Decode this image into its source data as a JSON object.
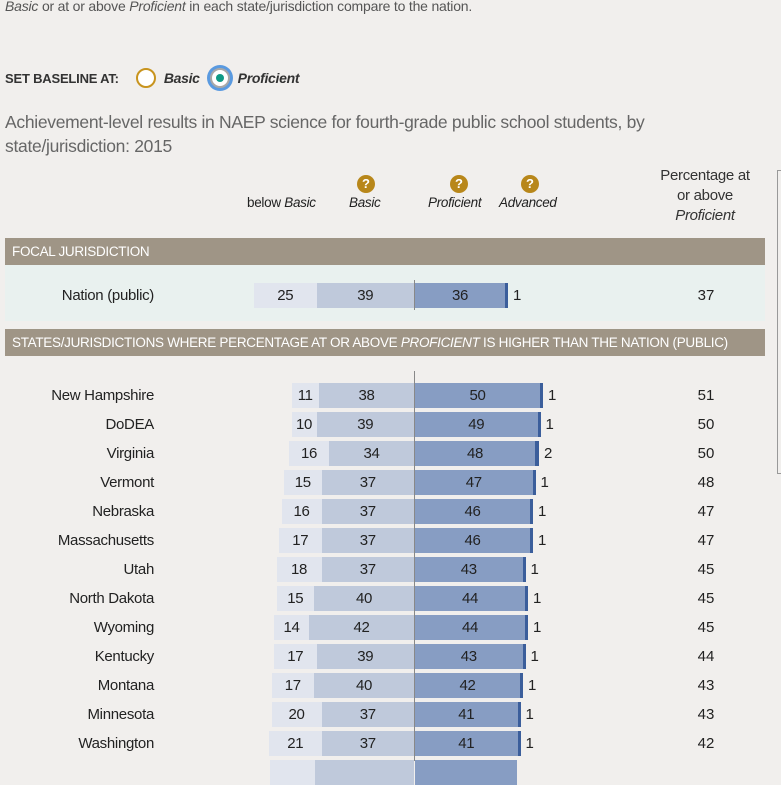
{
  "intro_text": {
    "part1": "Basic",
    "part2": " or at or above ",
    "part3": "Proficient",
    "part4": " in each state/jurisdiction compare to the nation."
  },
  "baseline": {
    "label": "SET BASELINE AT:",
    "options": [
      {
        "label": "Basic",
        "selected": false
      },
      {
        "label": "Proficient",
        "selected": true
      }
    ]
  },
  "title": "Achievement-level results in NAEP science for fourth-grade public school students, by state/jurisdiction: 2015",
  "columns": {
    "below_basic_prefix": "below ",
    "below_basic": "Basic",
    "basic": "Basic",
    "proficient": "Proficient",
    "advanced": "Advanced",
    "help_glyph": "?",
    "pct_line1": "Percentage at",
    "pct_line2": "or above",
    "pct_line3": "Proficient"
  },
  "sections": {
    "focal": "FOCAL JURISDICTION",
    "higher_part1": "STATES/JURISDICTIONS WHERE PERCENTAGE AT OR ABOVE ",
    "higher_part2": "PROFICIENT",
    "higher_part3": " IS HIGHER THAN THE NATION (PUBLIC)"
  },
  "colors": {
    "below_basic": "#e1e5ee",
    "basic": "#bfc9db",
    "proficient": "#879dc3",
    "advanced": "#3b5e9b",
    "band": "#9f9586",
    "focal_bg": "#e9f1ef",
    "help_icon": "#b8871a",
    "radio_selected": "#0f9a86"
  },
  "chart_data": {
    "type": "bar",
    "title": "Achievement-level results in NAEP science for fourth-grade public school students, by state/jurisdiction: 2015",
    "xlabel": "",
    "ylabel": "",
    "orientation": "horizontal-stacked-diverging",
    "baseline": "Proficient",
    "legend": [
      "below Basic",
      "Basic",
      "Proficient",
      "Advanced"
    ],
    "categories": [
      "Nation (public)",
      "New Hampshire",
      "DoDEA",
      "Virginia",
      "Vermont",
      "Nebraska",
      "Massachusetts",
      "Utah",
      "North Dakota",
      "Wyoming",
      "Kentucky",
      "Montana",
      "Minnesota",
      "Washington"
    ],
    "series": [
      {
        "name": "below Basic",
        "values": [
          25,
          11,
          10,
          16,
          15,
          16,
          17,
          18,
          15,
          14,
          17,
          17,
          20,
          21
        ]
      },
      {
        "name": "Basic",
        "values": [
          39,
          38,
          39,
          34,
          37,
          37,
          37,
          37,
          40,
          42,
          39,
          40,
          37,
          37
        ]
      },
      {
        "name": "Proficient",
        "values": [
          36,
          50,
          49,
          48,
          47,
          46,
          46,
          43,
          44,
          44,
          43,
          42,
          41,
          41
        ]
      },
      {
        "name": "Advanced",
        "values": [
          1,
          1,
          1,
          2,
          1,
          1,
          1,
          1,
          1,
          1,
          1,
          1,
          1,
          1
        ]
      },
      {
        "name": "Percentage at or above Proficient",
        "values": [
          37,
          51,
          50,
          50,
          48,
          47,
          47,
          45,
          45,
          45,
          44,
          43,
          43,
          42
        ]
      }
    ]
  },
  "focal_row": {
    "name": "Nation (public)",
    "below": 25,
    "basic": 39,
    "prof": 36,
    "adv": 1,
    "pct": 37
  },
  "rows": [
    {
      "name": "New Hampshire",
      "below": 11,
      "basic": 38,
      "prof": 50,
      "adv": 1,
      "pct": 51
    },
    {
      "name": "DoDEA",
      "below": 10,
      "basic": 39,
      "prof": 49,
      "adv": 1,
      "pct": 50
    },
    {
      "name": "Virginia",
      "below": 16,
      "basic": 34,
      "prof": 48,
      "adv": 2,
      "pct": 50
    },
    {
      "name": "Vermont",
      "below": 15,
      "basic": 37,
      "prof": 47,
      "adv": 1,
      "pct": 48
    },
    {
      "name": "Nebraska",
      "below": 16,
      "basic": 37,
      "prof": 46,
      "adv": 1,
      "pct": 47
    },
    {
      "name": "Massachusetts",
      "below": 17,
      "basic": 37,
      "prof": 46,
      "adv": 1,
      "pct": 47
    },
    {
      "name": "Utah",
      "below": 18,
      "basic": 37,
      "prof": 43,
      "adv": 1,
      "pct": 45
    },
    {
      "name": "North Dakota",
      "below": 15,
      "basic": 40,
      "prof": 44,
      "adv": 1,
      "pct": 45
    },
    {
      "name": "Wyoming",
      "below": 14,
      "basic": 42,
      "prof": 44,
      "adv": 1,
      "pct": 45
    },
    {
      "name": "Kentucky",
      "below": 17,
      "basic": 39,
      "prof": 43,
      "adv": 1,
      "pct": 44
    },
    {
      "name": "Montana",
      "below": 17,
      "basic": 40,
      "prof": 42,
      "adv": 1,
      "pct": 43
    },
    {
      "name": "Minnesota",
      "below": 20,
      "basic": 37,
      "prof": 41,
      "adv": 1,
      "pct": 43
    },
    {
      "name": "Washington",
      "below": 21,
      "basic": 37,
      "prof": 41,
      "adv": 1,
      "pct": 42
    }
  ]
}
